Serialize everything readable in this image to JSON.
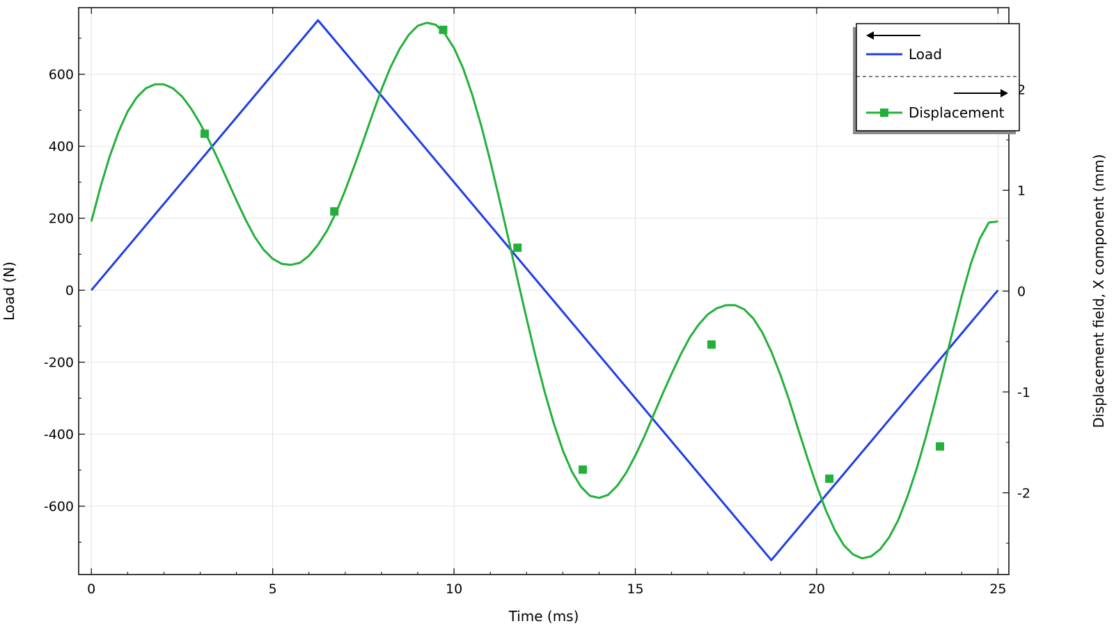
{
  "chart_data": {
    "type": "line",
    "title": "",
    "xlabel": "Time (ms)",
    "ylabel": "Load (N)",
    "y2label": "Displacement field, X component (mm)",
    "xlim": [
      -0.35,
      25.3
    ],
    "ylim": [
      -790,
      785
    ],
    "y2lim": [
      -2.81,
      2.81
    ],
    "grid": true,
    "legend_position": "top-right",
    "x_ticks": [
      0,
      5,
      10,
      15,
      20,
      25
    ],
    "y_ticks": [
      -600,
      -400,
      -200,
      0,
      200,
      400,
      600
    ],
    "y2_ticks": [
      -2,
      -1,
      0,
      1,
      2
    ],
    "series": [
      {
        "name": "Load",
        "axis": "left",
        "color": "#1f3ee6",
        "marker": "none",
        "x": [
          0,
          6.25,
          18.75,
          25
        ],
        "y": [
          0,
          750,
          -750,
          0
        ]
      },
      {
        "name": "Displacement",
        "axis": "right",
        "color": "#22b03a",
        "marker": "square",
        "x": [
          0,
          0.25,
          0.5,
          0.75,
          1.0,
          1.25,
          1.5,
          1.75,
          2.0,
          2.25,
          2.5,
          2.75,
          3.0,
          3.25,
          3.5,
          3.75,
          4.0,
          4.25,
          4.5,
          4.75,
          5.0,
          5.25,
          5.5,
          5.75,
          6.0,
          6.25,
          6.5,
          6.75,
          7.0,
          7.25,
          7.5,
          7.75,
          8.0,
          8.25,
          8.5,
          8.75,
          9.0,
          9.25,
          9.5,
          9.75,
          10.0,
          10.25,
          10.5,
          10.75,
          11.0,
          11.25,
          11.5,
          11.75,
          12.0,
          12.25,
          12.5,
          12.75,
          13.0,
          13.25,
          13.5,
          13.75,
          14.0,
          14.25,
          14.5,
          14.75,
          15.0,
          15.25,
          15.5,
          15.75,
          16.0,
          16.25,
          16.5,
          16.75,
          17.0,
          17.25,
          17.5,
          17.75,
          18.0,
          18.25,
          18.5,
          18.75,
          19.0,
          19.25,
          19.5,
          19.75,
          20.0,
          20.25,
          20.5,
          20.75,
          21.0,
          21.25,
          21.5,
          21.75,
          22.0,
          22.25,
          22.5,
          22.75,
          23.0,
          23.25,
          23.5,
          23.75,
          24.0,
          24.25,
          24.5,
          24.75,
          25.0
        ],
        "y": [
          0.69,
          1.03,
          1.33,
          1.58,
          1.78,
          1.92,
          2.01,
          2.05,
          2.05,
          2.01,
          1.93,
          1.81,
          1.66,
          1.49,
          1.3,
          1.1,
          0.9,
          0.71,
          0.54,
          0.41,
          0.32,
          0.27,
          0.26,
          0.28,
          0.35,
          0.46,
          0.6,
          0.78,
          1.0,
          1.24,
          1.49,
          1.75,
          2.0,
          2.22,
          2.4,
          2.54,
          2.63,
          2.66,
          2.64,
          2.55,
          2.41,
          2.21,
          1.95,
          1.64,
          1.29,
          0.91,
          0.52,
          0.12,
          -0.27,
          -0.65,
          -1.0,
          -1.31,
          -1.58,
          -1.79,
          -1.94,
          -2.03,
          -2.05,
          -2.02,
          -1.93,
          -1.8,
          -1.63,
          -1.44,
          -1.23,
          -1.02,
          -0.82,
          -0.63,
          -0.46,
          -0.33,
          -0.23,
          -0.17,
          -0.14,
          -0.14,
          -0.18,
          -0.27,
          -0.41,
          -0.6,
          -0.83,
          -1.09,
          -1.38,
          -1.66,
          -1.93,
          -2.17,
          -2.37,
          -2.52,
          -2.61,
          -2.65,
          -2.63,
          -2.56,
          -2.44,
          -2.27,
          -2.04,
          -1.77,
          -1.46,
          -1.12,
          -0.76,
          -0.4,
          -0.05,
          0.27,
          0.52,
          0.68,
          0.69
        ],
        "markers_x": [
          3.125,
          6.7,
          9.7,
          11.75,
          13.55,
          17.1,
          20.35,
          23.4
        ],
        "markers_y": [
          1.56,
          0.79,
          2.59,
          0.43,
          -1.77,
          -0.53,
          -1.86,
          -1.54
        ]
      }
    ]
  }
}
